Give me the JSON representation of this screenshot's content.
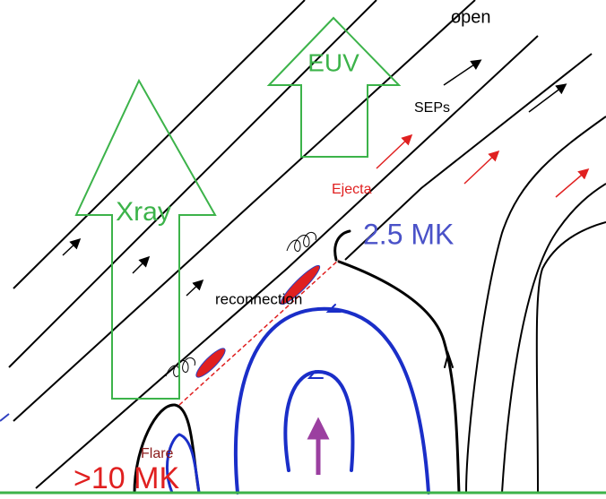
{
  "labels": {
    "open": "open",
    "euv": "EUV",
    "seps": "SEPs",
    "xray": "Xray",
    "ejecta": "Ejecta",
    "temp_loop": "2.5 MK",
    "reconnection": "reconnection",
    "flare": "Flare",
    "temp_flare": ">10 MK"
  }
}
